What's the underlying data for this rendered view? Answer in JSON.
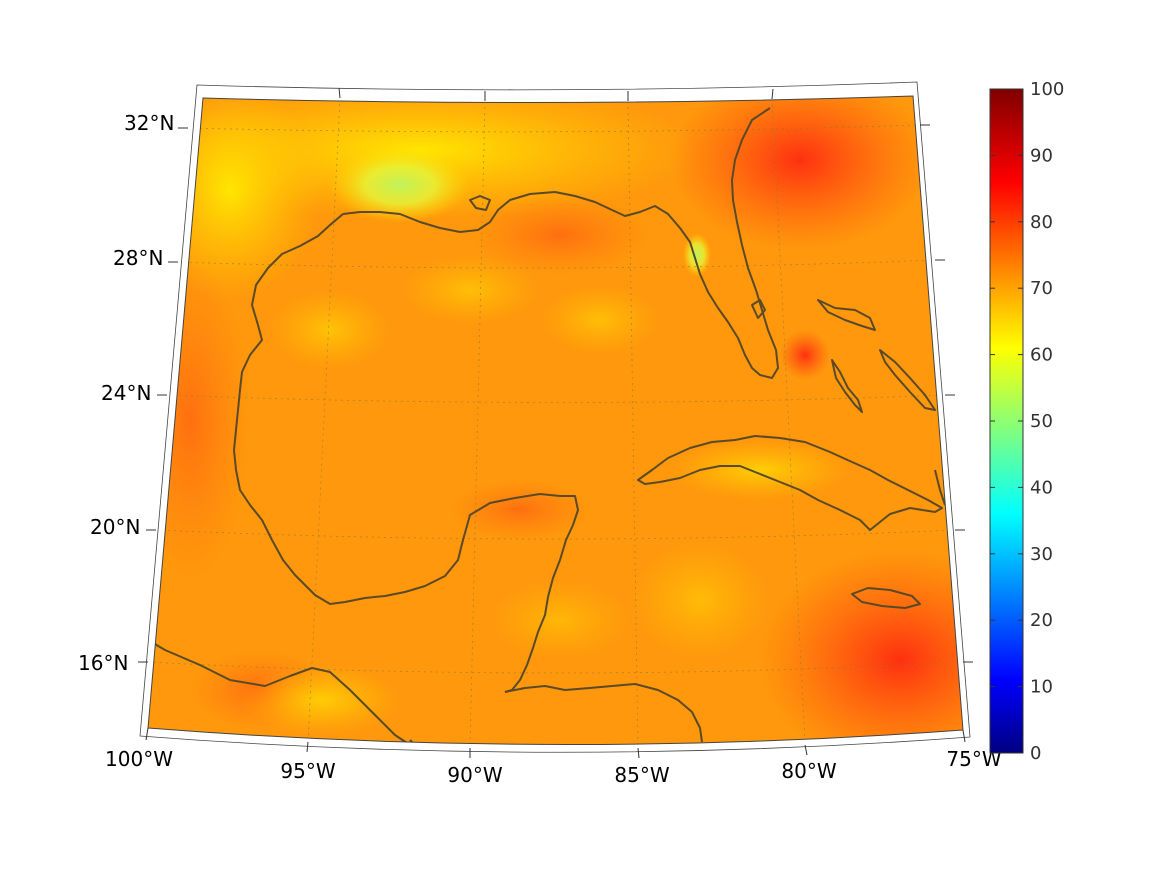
{
  "map": {
    "lon_labels": [
      "100°W",
      "95°W",
      "90°W",
      "85°W",
      "80°W",
      "75°W"
    ],
    "lat_labels": [
      "32°N",
      "28°N",
      "24°N",
      "20°N",
      "16°N"
    ],
    "extent": {
      "lon_min": -100,
      "lon_max": -75,
      "lat_min": 14,
      "lat_max": 33
    }
  },
  "colorbar": {
    "colormap": "jet",
    "min": 0,
    "max": 100,
    "ticks": [
      "0",
      "10",
      "20",
      "30",
      "40",
      "50",
      "60",
      "70",
      "80",
      "90",
      "100"
    ]
  },
  "colors": {
    "coastline": "#5a4a28",
    "field_base": "#ff9a0a",
    "field_warm": "#ff5010",
    "field_cool": "#ffe000"
  }
}
